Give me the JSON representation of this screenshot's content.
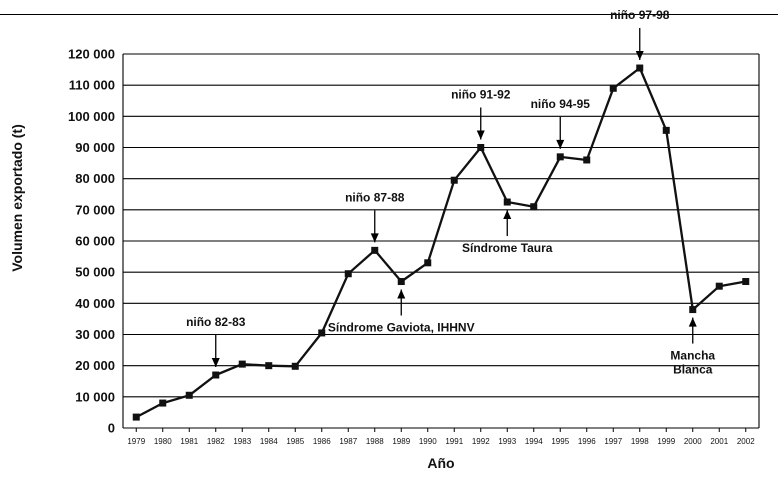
{
  "chart_data": {
    "type": "line",
    "xlabel": "Año",
    "ylabel": "Volumen exportado (t)",
    "ylim": [
      0,
      120000
    ],
    "yticks": [
      0,
      10000,
      20000,
      30000,
      40000,
      50000,
      60000,
      70000,
      80000,
      90000,
      100000,
      110000,
      120000
    ],
    "ytick_labels": [
      "0",
      "10 000",
      "20 000",
      "30 000",
      "40 000",
      "50 000",
      "60 000",
      "70 000",
      "80 000",
      "90 000",
      "100 000",
      "110 000",
      "120 000"
    ],
    "grid": "horizontal",
    "x": [
      "1979",
      "1980",
      "1981",
      "1982",
      "1983",
      "1984",
      "1985",
      "1986",
      "1987",
      "1988",
      "1989",
      "1990",
      "1991",
      "1992",
      "1993",
      "1994",
      "1995",
      "1996",
      "1997",
      "1998",
      "1999",
      "2000",
      "2001",
      "2002"
    ],
    "series": [
      {
        "values": [
          3500,
          8000,
          10500,
          17000,
          20500,
          20000,
          19800,
          30500,
          49500,
          57000,
          47000,
          53000,
          79500,
          90000,
          72500,
          71000,
          87000,
          86000,
          109000,
          115500,
          95500,
          38000,
          45500,
          47000
        ]
      }
    ],
    "annotations": [
      {
        "text": "niño 82-83",
        "year": "1982",
        "y": 17000,
        "arrow": "down"
      },
      {
        "text": "niño 87-88",
        "year": "1988",
        "y": 57000,
        "arrow": "down"
      },
      {
        "text": "niño 91-92",
        "year": "1992",
        "y": 90000,
        "arrow": "down"
      },
      {
        "text": "niño 94-95",
        "year": "1995",
        "y": 87000,
        "arrow": "down"
      },
      {
        "text": "niño 97-98",
        "year": "1998",
        "y": 115500,
        "arrow": "down"
      },
      {
        "text": "Síndrome Gaviota, IHHNV",
        "year": "1989",
        "y": 47000,
        "arrow": "up"
      },
      {
        "text": "Síndrome Taura",
        "year": "1993",
        "y": 72500,
        "arrow": "up"
      },
      {
        "text": "Mancha",
        "text2": "Blanca",
        "year": "2000",
        "y": 38000,
        "arrow": "up"
      }
    ],
    "colors": {
      "line": "#111111",
      "grid": "#000000"
    }
  }
}
